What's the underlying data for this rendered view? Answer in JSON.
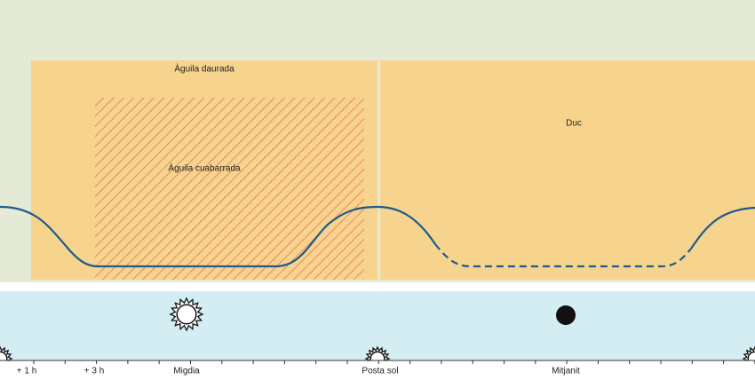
{
  "zones": [
    {
      "label": "Àguila daurada"
    },
    {
      "label": "Àguila cuabarrada"
    },
    {
      "label": "Duc"
    }
  ],
  "timeline": [
    {
      "label": "+ 1 h"
    },
    {
      "label": "+ 3 h"
    },
    {
      "label": "Migdia"
    },
    {
      "label": "Posta sol"
    },
    {
      "label": "Mitjanit"
    }
  ]
}
